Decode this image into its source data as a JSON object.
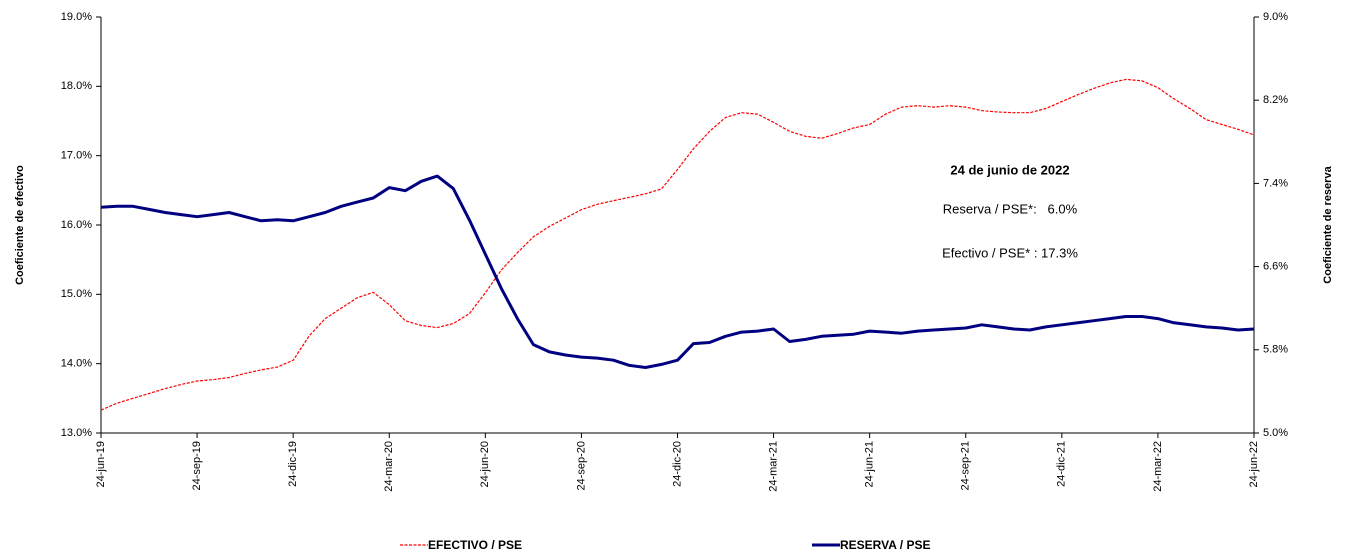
{
  "chart_data": {
    "type": "line",
    "y_label": "Coeficiente de efectivo",
    "y2_label": "Coeficiente de reserva",
    "annotations": [
      "24 de junio de 2022",
      "Reserva / PSE*:   6.0%",
      "Efectivo / PSE* : 17.3%"
    ],
    "categories": [
      "24-jun-19",
      null,
      null,
      null,
      null,
      null,
      "24-sep-19",
      null,
      null,
      null,
      null,
      null,
      "24-dic-19",
      null,
      null,
      null,
      null,
      null,
      "24-mar-20",
      null,
      null,
      null,
      null,
      null,
      "24-jun-20",
      null,
      null,
      null,
      null,
      null,
      "24-sep-20",
      null,
      null,
      null,
      null,
      null,
      "24-dic-20",
      null,
      null,
      null,
      null,
      null,
      "24-mar-21",
      null,
      null,
      null,
      null,
      null,
      "24-jun-21",
      null,
      null,
      null,
      null,
      null,
      "24-sep-21",
      null,
      null,
      null,
      null,
      null,
      "24-dic-21",
      null,
      null,
      null,
      null,
      null,
      "24-mar-22",
      null,
      null,
      null,
      null,
      null,
      "24-jun-22"
    ],
    "series": [
      {
        "name": "EFECTIVO / PSE",
        "color": "#ff0000",
        "axis": "y",
        "dashed": true,
        "values": [
          13.33,
          13.43,
          13.5,
          13.57,
          13.64,
          13.7,
          13.75,
          13.77,
          13.8,
          13.86,
          13.91,
          13.95,
          14.05,
          14.4,
          14.65,
          14.8,
          14.95,
          15.03,
          14.85,
          14.62,
          14.55,
          14.52,
          14.58,
          14.72,
          15.02,
          15.35,
          15.6,
          15.83,
          15.98,
          16.1,
          16.22,
          16.3,
          16.35,
          16.4,
          16.45,
          16.52,
          16.8,
          17.1,
          17.35,
          17.55,
          17.62,
          17.6,
          17.48,
          17.35,
          17.28,
          17.25,
          17.32,
          17.4,
          17.45,
          17.6,
          17.7,
          17.72,
          17.7,
          17.72,
          17.7,
          17.65,
          17.63,
          17.62,
          17.62,
          17.68,
          17.78,
          17.88,
          17.97,
          18.05,
          18.1,
          18.08,
          17.98,
          17.82,
          17.68,
          17.52,
          17.45,
          17.38,
          17.3
        ]
      },
      {
        "name": "RESERVA / PSE",
        "color": "#000080",
        "axis": "y2",
        "dashed": false,
        "values": [
          7.17,
          7.18,
          7.18,
          7.15,
          7.12,
          7.1,
          7.08,
          7.1,
          7.12,
          7.08,
          7.04,
          7.05,
          7.04,
          7.08,
          7.12,
          7.18,
          7.22,
          7.26,
          7.36,
          7.33,
          7.42,
          7.47,
          7.35,
          7.05,
          6.72,
          6.39,
          6.1,
          5.85,
          5.78,
          5.75,
          5.73,
          5.72,
          5.7,
          5.65,
          5.63,
          5.66,
          5.7,
          5.86,
          5.87,
          5.93,
          5.97,
          5.98,
          6.0,
          5.88,
          5.9,
          5.93,
          5.94,
          5.95,
          5.98,
          5.97,
          5.96,
          5.98,
          5.99,
          6.0,
          6.01,
          6.04,
          6.02,
          6.0,
          5.99,
          6.02,
          6.04,
          6.06,
          6.08,
          6.1,
          6.12,
          6.12,
          6.1,
          6.06,
          6.04,
          6.02,
          6.01,
          5.99,
          6.0
        ]
      }
    ],
    "ylim": [
      13,
      19
    ],
    "yticks": [
      {
        "value": 13,
        "label": "13.0%"
      },
      {
        "value": 14,
        "label": "14.0%"
      },
      {
        "value": 15,
        "label": "15.0%"
      },
      {
        "value": 16,
        "label": "16.0%"
      },
      {
        "value": 17,
        "label": "17.0%"
      },
      {
        "value": 18,
        "label": "18.0%"
      },
      {
        "value": 19,
        "label": "19.0%"
      }
    ],
    "y2lim": [
      5,
      9
    ],
    "y2ticks": [
      {
        "value": 5,
        "label": "5.0%"
      },
      {
        "value": 5.8,
        "label": "5.8%"
      },
      {
        "value": 6.6,
        "label": "6.6%"
      },
      {
        "value": 7.4,
        "label": "7.4%"
      },
      {
        "value": 8.2,
        "label": "8.2%"
      },
      {
        "value": 9,
        "label": "9.0%"
      }
    ],
    "grid": false,
    "legend": "bottom"
  }
}
